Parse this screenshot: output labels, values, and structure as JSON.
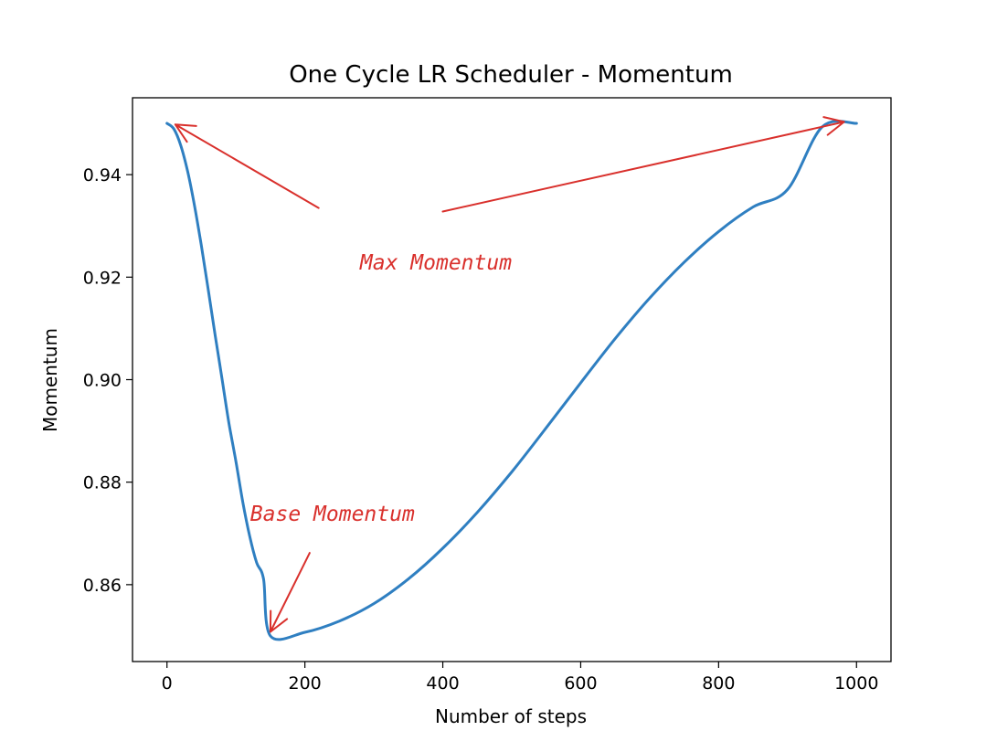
{
  "chart_data": {
    "type": "line",
    "title": "One Cycle LR Scheduler - Momentum",
    "xlabel": "Number of steps",
    "ylabel": "Momentum",
    "xlim": [
      -50,
      1050
    ],
    "ylim": [
      0.845,
      0.955
    ],
    "x_ticks": [
      0,
      200,
      400,
      600,
      800,
      1000
    ],
    "y_ticks": [
      0.86,
      0.88,
      0.9,
      0.92,
      0.94
    ],
    "x_tick_labels": [
      "0",
      "200",
      "400",
      "600",
      "800",
      "1000"
    ],
    "y_tick_labels": [
      "0.86",
      "0.88",
      "0.90",
      "0.92",
      "0.94"
    ],
    "grid": false,
    "series": [
      {
        "color": "#2f7fc1",
        "x": [
          0,
          10,
          20,
          30,
          40,
          50,
          60,
          70,
          80,
          90,
          100,
          110,
          120,
          130,
          140,
          150,
          200,
          250,
          300,
          350,
          400,
          450,
          500,
          550,
          600,
          650,
          700,
          750,
          800,
          850,
          900,
          950,
          1000
        ],
        "y": [
          0.95,
          0.9489,
          0.9457,
          0.9406,
          0.9339,
          0.926,
          0.9174,
          0.9086,
          0.9,
          0.8914,
          0.884,
          0.8761,
          0.8694,
          0.8643,
          0.8611,
          0.85,
          0.8507,
          0.8529,
          0.8563,
          0.8611,
          0.8671,
          0.8741,
          0.882,
          0.8906,
          0.8994,
          0.908,
          0.9159,
          0.9229,
          0.9289,
          0.9337,
          0.9371,
          0.9493,
          0.95
        ]
      }
    ],
    "annotations": [
      {
        "text": "Max Momentum",
        "at": [
          390,
          0.9215
        ]
      },
      {
        "text": "Base Momentum",
        "at": [
          240,
          0.8725
        ]
      }
    ],
    "arrows": [
      {
        "from": [
          220,
          0.9335
        ],
        "to": [
          12,
          0.9498
        ]
      },
      {
        "from": [
          400,
          0.9328
        ],
        "to": [
          982,
          0.9503
        ]
      },
      {
        "from": [
          207,
          0.8662
        ],
        "to": [
          150,
          0.8508
        ]
      }
    ]
  }
}
